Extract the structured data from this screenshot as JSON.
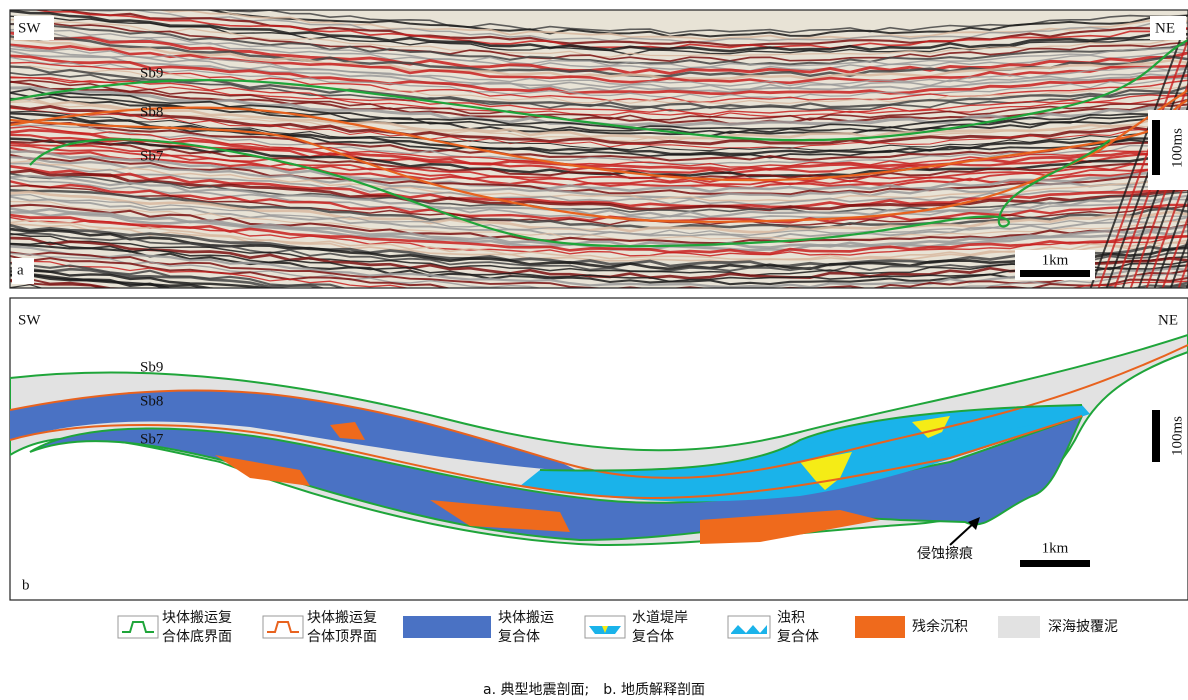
{
  "panel_a": {
    "left": "SW",
    "right": "NE",
    "horizons": [
      "Sb9",
      "Sb8",
      "Sb7"
    ],
    "vertical_scale": "100ms",
    "horizontal_scale": "1km",
    "tag": "a"
  },
  "panel_b": {
    "left": "SW",
    "right": "NE",
    "horizons": [
      "Sb9",
      "Sb8",
      "Sb7"
    ],
    "vertical_scale": "100ms",
    "horizontal_scale": "1km",
    "annotation": "侵蚀擦痕",
    "tag": "b"
  },
  "legend": [
    {
      "lines": [
        "块体搬运复",
        "合体底界面"
      ]
    },
    {
      "lines": [
        "块体搬运复",
        "合体顶界面"
      ]
    },
    {
      "lines": [
        "块体搬运",
        "复合体"
      ]
    },
    {
      "lines": [
        "水道堤岸",
        "复合体"
      ]
    },
    {
      "lines": [
        "浊积",
        "复合体"
      ]
    },
    {
      "lines": [
        "残余沉积"
      ]
    },
    {
      "lines": [
        "深海披覆泥"
      ]
    }
  ],
  "caption": "a. 典型地震剖面;　b. 地质解释剖面"
}
